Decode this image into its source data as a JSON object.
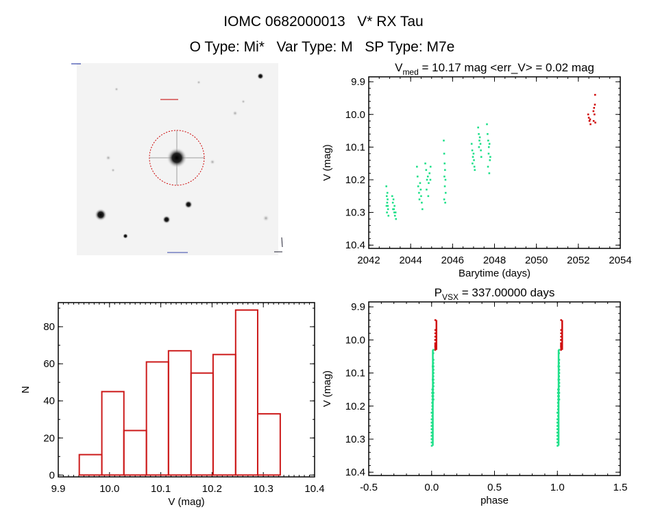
{
  "header": {
    "title_line1": "IOMC 0682000013   V* RX Tau",
    "title_line2": "O Type: Mi*   Var Type: M   SP Type: M7e"
  },
  "colors": {
    "current_cycle": "#1fe08a",
    "later_points": "#d01010",
    "histogram": "#cc1a1a",
    "axes": "#000000"
  },
  "chart_data": [
    {
      "id": "sky-image",
      "type": "image",
      "description_labels": "tiny illegible overlay labels in corners and above target",
      "marker": "red dashed circle around central star"
    },
    {
      "id": "light-curve",
      "type": "scatter",
      "title": {
        "main": "V",
        "sub": "med",
        "rest": " = 10.17 mag <err_V> = 0.02 mag"
      },
      "xlabel": "Barytime (days)",
      "ylabel": "V (mag)",
      "xlim": [
        2042,
        2054
      ],
      "ylim": [
        10.41,
        9.885
      ],
      "y_reversed": true,
      "xticks": [
        "2042",
        "2044",
        "2046",
        "2048",
        "2050",
        "2052",
        "2054"
      ],
      "yticks": [
        "9.9",
        "10.0",
        "10.1",
        "10.2",
        "10.3",
        "10.4"
      ],
      "series": [
        {
          "color": "#1fe08a",
          "points": [
            [
              2042.84,
              10.22
            ],
            [
              2042.86,
              10.25
            ],
            [
              2042.88,
              10.27
            ],
            [
              2042.9,
              10.26
            ],
            [
              2042.85,
              10.28
            ],
            [
              2042.92,
              10.29
            ],
            [
              2042.87,
              10.3
            ],
            [
              2042.94,
              10.31
            ],
            [
              2042.89,
              10.24
            ],
            [
              2042.91,
              10.28
            ],
            [
              2043.12,
              10.25
            ],
            [
              2043.15,
              10.27
            ],
            [
              2043.18,
              10.26
            ],
            [
              2043.2,
              10.29
            ],
            [
              2043.23,
              10.28
            ],
            [
              2043.25,
              10.31
            ],
            [
              2043.28,
              10.3
            ],
            [
              2043.3,
              10.32
            ],
            [
              2043.16,
              10.29
            ],
            [
              2043.22,
              10.3
            ],
            [
              2044.3,
              10.16
            ],
            [
              2044.33,
              10.19
            ],
            [
              2044.36,
              10.22
            ],
            [
              2044.4,
              10.24
            ],
            [
              2044.45,
              10.21
            ],
            [
              2044.5,
              10.25
            ],
            [
              2044.53,
              10.27
            ],
            [
              2044.56,
              10.29
            ],
            [
              2044.42,
              10.26
            ],
            [
              2044.48,
              10.23
            ],
            [
              2044.7,
              10.15
            ],
            [
              2044.74,
              10.17
            ],
            [
              2044.78,
              10.2
            ],
            [
              2044.82,
              10.19
            ],
            [
              2044.86,
              10.21
            ],
            [
              2044.9,
              10.18
            ],
            [
              2044.94,
              10.2
            ],
            [
              2044.76,
              10.23
            ],
            [
              2044.84,
              10.25
            ],
            [
              2044.95,
              10.16
            ],
            [
              2045.58,
              10.08
            ],
            [
              2045.6,
              10.12
            ],
            [
              2045.62,
              10.15
            ],
            [
              2045.64,
              10.17
            ],
            [
              2045.61,
              10.19
            ],
            [
              2045.66,
              10.2
            ],
            [
              2045.63,
              10.22
            ],
            [
              2045.67,
              10.24
            ],
            [
              2045.6,
              10.26
            ],
            [
              2045.65,
              10.27
            ],
            [
              2046.91,
              10.09
            ],
            [
              2046.94,
              10.11
            ],
            [
              2046.97,
              10.13
            ],
            [
              2047.0,
              10.12
            ],
            [
              2046.95,
              10.15
            ],
            [
              2047.02,
              10.14
            ],
            [
              2047.04,
              10.16
            ],
            [
              2047.06,
              10.17
            ],
            [
              2047.22,
              10.04
            ],
            [
              2047.25,
              10.06
            ],
            [
              2047.28,
              10.08
            ],
            [
              2047.3,
              10.07
            ],
            [
              2047.33,
              10.09
            ],
            [
              2047.26,
              10.1
            ],
            [
              2047.35,
              10.11
            ],
            [
              2047.37,
              10.13
            ],
            [
              2047.64,
              10.03
            ],
            [
              2047.67,
              10.06
            ],
            [
              2047.7,
              10.08
            ],
            [
              2047.73,
              10.1
            ],
            [
              2047.76,
              10.09
            ],
            [
              2047.72,
              10.12
            ],
            [
              2047.78,
              10.14
            ],
            [
              2047.8,
              10.13
            ],
            [
              2047.69,
              10.16
            ],
            [
              2047.75,
              10.18
            ]
          ]
        },
        {
          "color": "#d01010",
          "points": [
            [
              2052.47,
              10.0
            ],
            [
              2052.5,
              10.01
            ],
            [
              2052.53,
              10.02
            ],
            [
              2052.56,
              10.015
            ],
            [
              2052.58,
              10.03
            ],
            [
              2052.8,
              9.94
            ],
            [
              2052.72,
              9.99
            ],
            [
              2052.75,
              9.98
            ],
            [
              2052.77,
              10.0
            ],
            [
              2052.79,
              9.97
            ],
            [
              2052.73,
              10.02
            ],
            [
              2052.81,
              10.025
            ]
          ]
        }
      ]
    },
    {
      "id": "histogram",
      "type": "bar",
      "xlabel": "V (mag)",
      "ylabel": "N",
      "xlim": [
        9.9,
        10.4
      ],
      "ylim": [
        -1,
        93
      ],
      "xticks": [
        "9.9",
        "10.0",
        "10.1",
        "10.2",
        "10.3",
        "10.4"
      ],
      "yticks": [
        "0",
        "20",
        "40",
        "60",
        "80"
      ],
      "bin_edges": [
        9.941,
        9.985,
        10.028,
        10.072,
        10.115,
        10.159,
        10.202,
        10.246,
        10.289,
        10.333
      ],
      "values": [
        11,
        45,
        24,
        61,
        67,
        55,
        65,
        89,
        33
      ]
    },
    {
      "id": "phase-plot",
      "type": "scatter",
      "title": {
        "main": "P",
        "sub": "VSX",
        "rest": " = 337.00000 days"
      },
      "period_days": 337.0,
      "xlabel": "phase",
      "ylabel": "V (mag)",
      "xlim": [
        -0.5,
        1.5
      ],
      "ylim": [
        10.41,
        9.885
      ],
      "y_reversed": true,
      "xticks": [
        "-0.5",
        "0.0",
        "0.5",
        "1.0",
        "1.5"
      ],
      "yticks": [
        "9.9",
        "10.0",
        "10.1",
        "10.2",
        "10.3",
        "10.4"
      ]
    }
  ]
}
